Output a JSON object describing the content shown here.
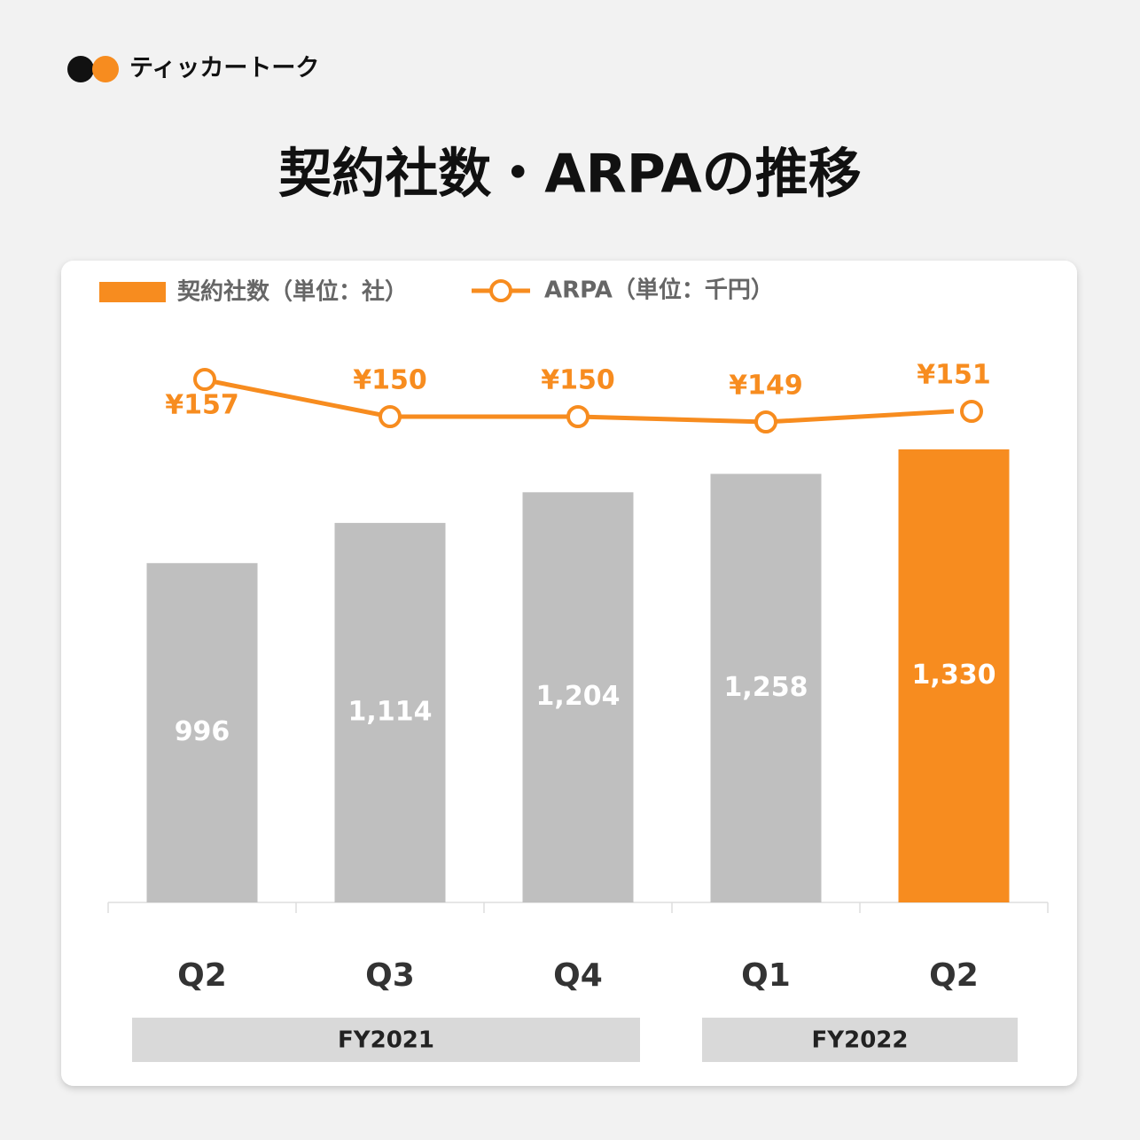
{
  "brand": "ティッカートーク",
  "chart_data": {
    "type": "bar",
    "title": "契約社数・ARPAの推移",
    "categories": [
      "Q2",
      "Q3",
      "Q4",
      "Q1",
      "Q2"
    ],
    "group_labels": [
      "FY2021",
      "FY2022"
    ],
    "series": [
      {
        "name": "契約社数（単位：社）",
        "type": "bar",
        "color": "#f78c1f",
        "colors": [
          "#bfbfbf",
          "#bfbfbf",
          "#bfbfbf",
          "#bfbfbf",
          "#f78c1f"
        ],
        "values": [
          996,
          1114,
          1204,
          1258,
          1330
        ],
        "value_labels": [
          "996",
          "1,114",
          "1,204",
          "1,258",
          "1,330"
        ]
      },
      {
        "name": "ARPA（単位：千円）",
        "type": "line",
        "color": "#f78c1f",
        "values": [
          157,
          150,
          150,
          149,
          151
        ],
        "value_labels": [
          "¥157",
          "¥150",
          "¥150",
          "¥149",
          "¥151"
        ]
      }
    ]
  }
}
